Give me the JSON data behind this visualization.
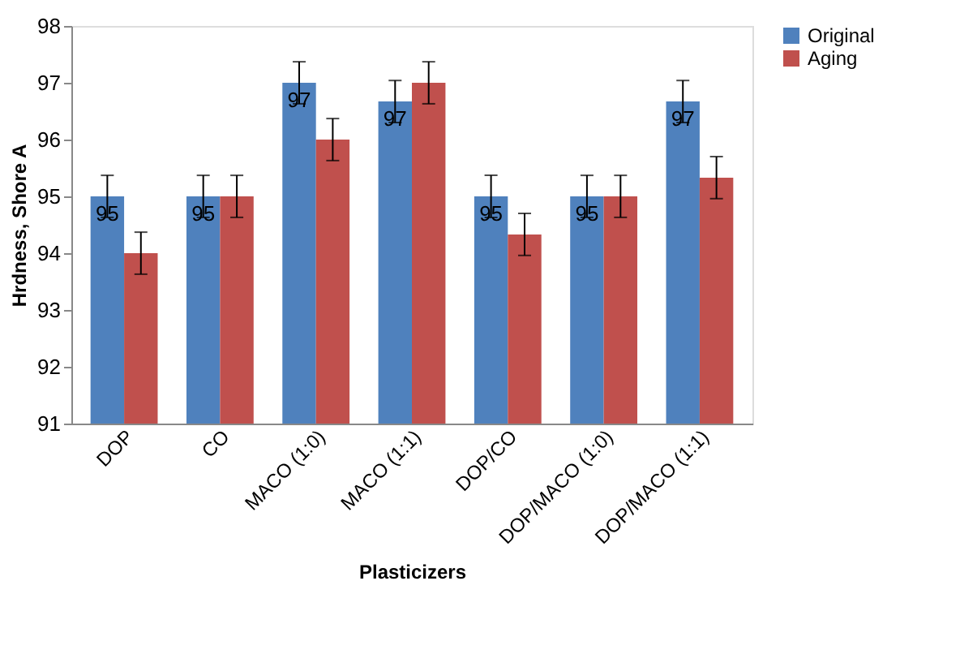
{
  "chart_data": {
    "type": "bar",
    "xlabel": "Plasticizers",
    "ylabel": "Hrdness, Shore A",
    "categories": [
      "DOP",
      "CO",
      "MACO (1:0)",
      "MACO (1:1)",
      "DOP/CO",
      "DOP/MACO (1:0)",
      "DOP/MACO (1:1)"
    ],
    "series": [
      {
        "name": "Original",
        "color": "#4f81bd",
        "values": [
          95,
          95,
          97,
          96.67,
          95,
          95,
          96.67
        ],
        "errors": [
          0.37,
          0.37,
          0.37,
          0.37,
          0.37,
          0.37,
          0.37
        ],
        "value_labels": [
          "95",
          "95",
          "97",
          "97",
          "95",
          "95",
          "97"
        ]
      },
      {
        "name": "Aging",
        "color": "#c0504d",
        "values": [
          94,
          95,
          96,
          97,
          94.33,
          95,
          95.33
        ],
        "errors": [
          0.37,
          0.37,
          0.37,
          0.37,
          0.37,
          0.37,
          0.37
        ]
      }
    ],
    "ylim": [
      91,
      98
    ],
    "yticks": [
      91,
      92,
      93,
      94,
      95,
      96,
      97,
      98
    ],
    "grid": false,
    "legend": "right"
  }
}
